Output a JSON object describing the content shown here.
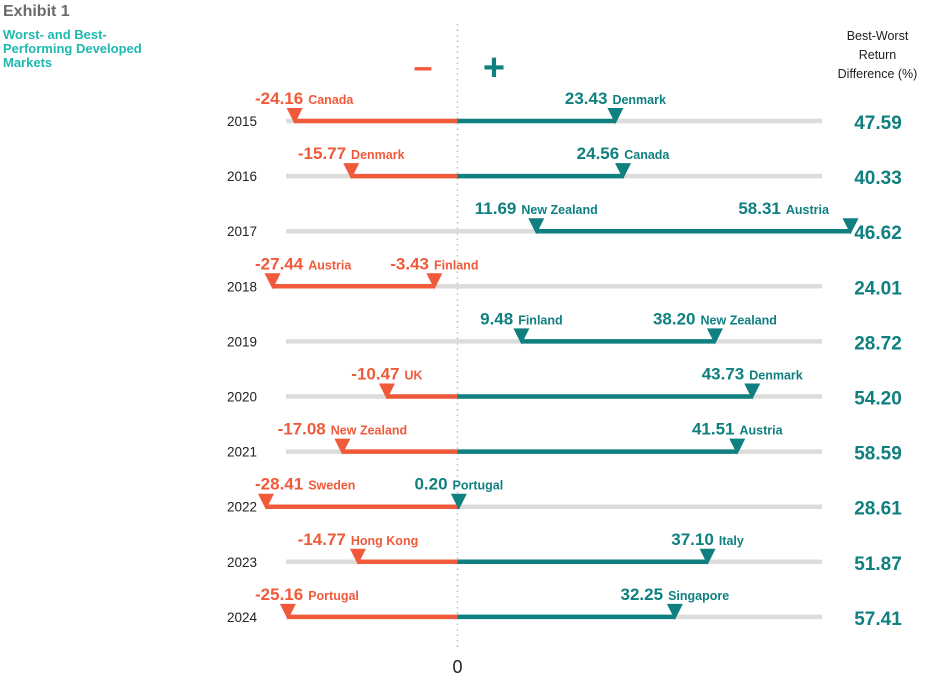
{
  "exhibit": "Exhibit 1",
  "subtitle": "Worst- and Best-\nPerforming Developed\nMarkets",
  "diff_header": "Best-Worst\nReturn\nDifference (%)",
  "minus_symbol": "–",
  "plus_symbol": "+",
  "zero_label": "0",
  "colors": {
    "worst": "#f05a3a",
    "best": "#0f7f80",
    "track": "#dcdcdc",
    "zero_line": "#b8b8b8",
    "text": "#222222"
  },
  "chart_data": {
    "type": "range-bar",
    "title": "Worst- and Best-Performing Developed Markets",
    "xlim": [
      -29,
      59
    ],
    "zero_tick": 0,
    "rows": [
      {
        "year": "2015",
        "worst_value": -24.16,
        "worst_label": "-24.16",
        "worst_country": "Canada",
        "best_value": 23.43,
        "best_label": "23.43",
        "best_country": "Denmark",
        "diff": "47.59"
      },
      {
        "year": "2016",
        "worst_value": -15.77,
        "worst_label": "-15.77",
        "worst_country": "Denmark",
        "best_value": 24.56,
        "best_label": "24.56",
        "best_country": "Canada",
        "diff": "40.33"
      },
      {
        "year": "2017",
        "worst_value": 11.69,
        "worst_label": "11.69",
        "worst_country": "New Zealand",
        "best_value": 58.31,
        "best_label": "58.31",
        "best_country": "Austria",
        "diff": "46.62"
      },
      {
        "year": "2018",
        "worst_value": -27.44,
        "worst_label": "-27.44",
        "worst_country": "Austria",
        "best_value": -3.43,
        "best_label": "-3.43",
        "best_country": "Finland",
        "diff": "24.01"
      },
      {
        "year": "2019",
        "worst_value": 9.48,
        "worst_label": "9.48",
        "worst_country": "Finland",
        "best_value": 38.2,
        "best_label": "38.20",
        "best_country": "New Zealand",
        "diff": "28.72"
      },
      {
        "year": "2020",
        "worst_value": -10.47,
        "worst_label": "-10.47",
        "worst_country": "UK",
        "best_value": 43.73,
        "best_label": "43.73",
        "best_country": "Denmark",
        "diff": "54.20"
      },
      {
        "year": "2021",
        "worst_value": -17.08,
        "worst_label": "-17.08",
        "worst_country": "New Zealand",
        "best_value": 41.51,
        "best_label": "41.51",
        "best_country": "Austria",
        "diff": "58.59"
      },
      {
        "year": "2022",
        "worst_value": -28.41,
        "worst_label": "-28.41",
        "worst_country": "Sweden",
        "best_value": 0.2,
        "best_label": "0.20",
        "best_country": "Portugal",
        "diff": "28.61"
      },
      {
        "year": "2023",
        "worst_value": -14.77,
        "worst_label": "-14.77",
        "worst_country": "Hong Kong",
        "best_value": 37.1,
        "best_label": "37.10",
        "best_country": "Italy",
        "diff": "51.87"
      },
      {
        "year": "2024",
        "worst_value": -25.16,
        "worst_label": "-25.16",
        "worst_country": "Portugal",
        "best_value": 32.25,
        "best_label": "32.25",
        "best_country": "Singapore",
        "diff": "57.41"
      }
    ]
  }
}
